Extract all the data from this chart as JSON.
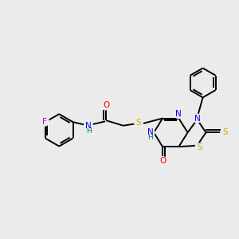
{
  "bg_color": "#ebebeb",
  "line_color": "#000000",
  "atom_colors": {
    "N": "#0000ff",
    "O": "#ff0000",
    "S": "#ccaa00",
    "F": "#cc00cc",
    "C": "#000000",
    "H": "#008080"
  },
  "figsize": [
    3.0,
    3.0
  ],
  "dpi": 100,
  "lw": 1.4
}
